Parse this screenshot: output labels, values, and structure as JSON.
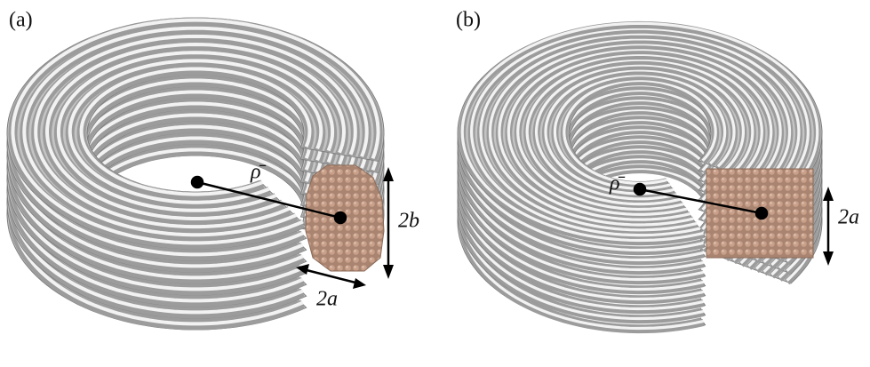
{
  "panels": [
    {
      "label": "(a)",
      "rho": "ρ̄",
      "height": "2b",
      "width": "2a"
    },
    {
      "label": "(b)",
      "rho": "ρ̄",
      "height": "2a"
    }
  ]
}
